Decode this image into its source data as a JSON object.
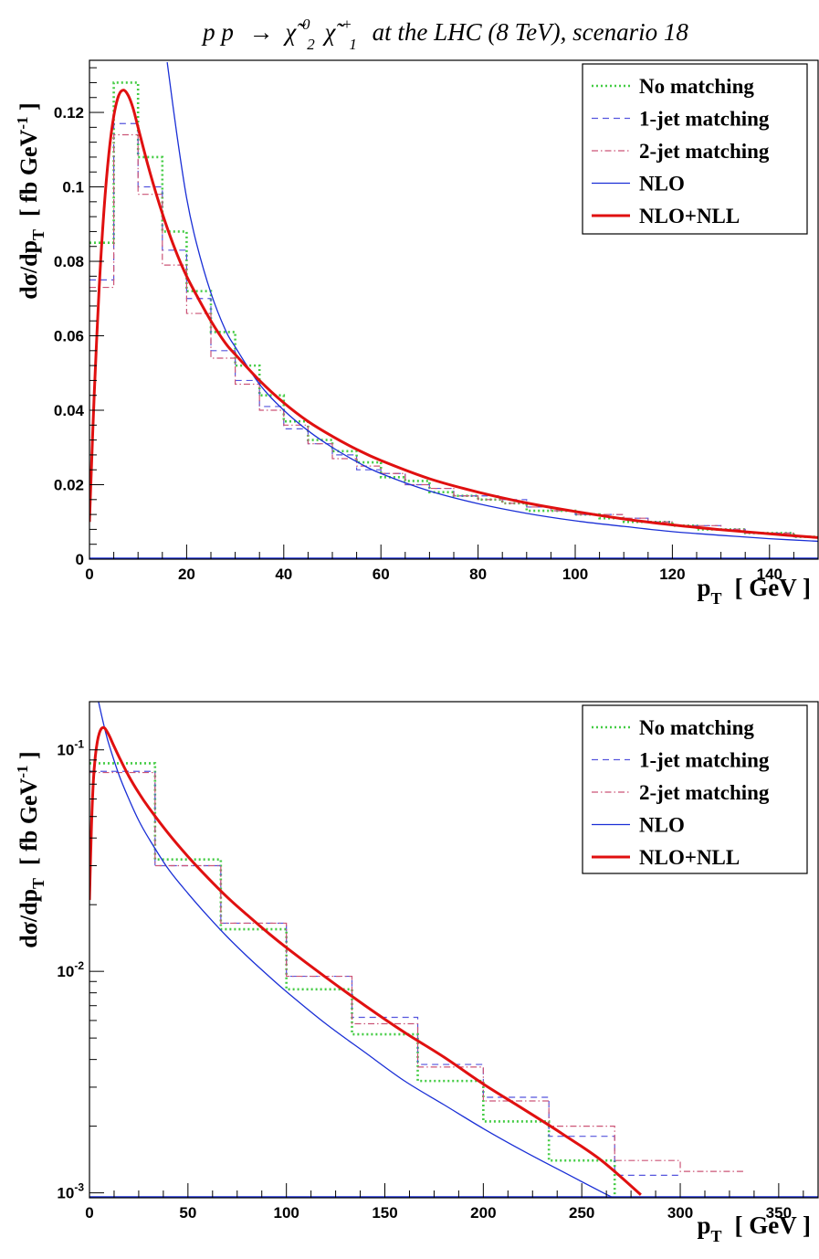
{
  "figure_title": {
    "prefix": "p p",
    "arrow": "→",
    "chi": "χ̃",
    "chi1_sup": "0",
    "chi1_sub": "2",
    "chi2_sup": "+",
    "chi2_sub": "1",
    "suffix": "at the LHC (8 TeV), scenario 18"
  },
  "colors": {
    "no_matching": "#44cc44",
    "jet1": "#5555dd",
    "jet2": "#cc5577",
    "nlo": "#1a2fd6",
    "nlo_nll": "#e01010",
    "axis": "#000000"
  },
  "chart_data": [
    {
      "type": "line",
      "scale": "linear",
      "ylabel": "dσ/dp_T [ fb GeV^-1 ]",
      "ylabel_parts": {
        "main": "dσ/dp",
        "sub": "T",
        "open": "[ fb GeV",
        "sup": "-1",
        "close": " ]"
      },
      "xlabel_parts": {
        "main": "p",
        "sub": "T",
        "rest": "[ GeV ]"
      },
      "xlim": [
        0,
        150
      ],
      "ylim": [
        0,
        0.134
      ],
      "xticks": [
        0,
        20,
        40,
        60,
        80,
        100,
        120,
        140
      ],
      "xtick_labels": [
        "0",
        "20",
        "40",
        "60",
        "80",
        "100",
        "120",
        "140"
      ],
      "yticks": [
        0,
        0.02,
        0.04,
        0.06,
        0.08,
        0.1,
        0.12
      ],
      "ytick_labels": [
        "0",
        "0.02",
        "0.04",
        "0.06",
        "0.08",
        "0.1",
        "0.12"
      ],
      "legend": {
        "position": "top-right",
        "entries": [
          "No matching",
          "1-jet matching",
          "2-jet matching",
          "NLO",
          "NLO+NLL"
        ]
      },
      "histograms": [
        {
          "name": "No matching",
          "style": "dotted",
          "edges": [
            0,
            5,
            10,
            15,
            20,
            25,
            30,
            35,
            40,
            45,
            50,
            55,
            60,
            65,
            70,
            75,
            80,
            85,
            90,
            95,
            100,
            105,
            110,
            115,
            120,
            125,
            130,
            135,
            140,
            145,
            150
          ],
          "values": [
            0.085,
            0.128,
            0.108,
            0.088,
            0.072,
            0.061,
            0.052,
            0.044,
            0.037,
            0.032,
            0.029,
            0.026,
            0.022,
            0.021,
            0.018,
            0.017,
            0.016,
            0.015,
            0.013,
            0.013,
            0.012,
            0.011,
            0.01,
            0.01,
            0.009,
            0.008,
            0.008,
            0.007,
            0.007,
            0.006
          ]
        },
        {
          "name": "1-jet matching",
          "style": "dashed",
          "edges": [
            0,
            5,
            10,
            15,
            20,
            25,
            30,
            35,
            40,
            45,
            50,
            55,
            60,
            65,
            70,
            75,
            80,
            85,
            90,
            95,
            100,
            105,
            110,
            115,
            120,
            125,
            130,
            135,
            140,
            145,
            150
          ],
          "values": [
            0.075,
            0.117,
            0.1,
            0.083,
            0.07,
            0.056,
            0.048,
            0.041,
            0.035,
            0.031,
            0.028,
            0.024,
            0.023,
            0.02,
            0.019,
            0.017,
            0.017,
            0.016,
            0.014,
            0.013,
            0.012,
            0.012,
            0.011,
            0.01,
            0.009,
            0.009,
            0.008,
            0.007,
            0.007,
            0.006
          ]
        },
        {
          "name": "2-jet matching",
          "style": "dashdot",
          "edges": [
            0,
            5,
            10,
            15,
            20,
            25,
            30,
            35,
            40,
            45,
            50,
            55,
            60,
            65,
            70,
            75,
            80,
            85,
            90,
            95,
            100,
            105,
            110,
            115,
            120,
            125,
            130,
            135,
            140,
            145,
            150
          ],
          "values": [
            0.073,
            0.114,
            0.098,
            0.079,
            0.066,
            0.054,
            0.047,
            0.04,
            0.036,
            0.031,
            0.027,
            0.025,
            0.023,
            0.02,
            0.019,
            0.017,
            0.016,
            0.015,
            0.014,
            0.013,
            0.012,
            0.012,
            0.011,
            0.01,
            0.009,
            0.009,
            0.008,
            0.007,
            0.007,
            0.006
          ]
        }
      ],
      "curves": [
        {
          "name": "NLO",
          "style": "solid-thin",
          "x": [
            16.0,
            18,
            20,
            22,
            25,
            28,
            30,
            35,
            40,
            45,
            50,
            55,
            60,
            70,
            80,
            90,
            100,
            110,
            120,
            130,
            140,
            150
          ],
          "y": [
            0.1335,
            0.114,
            0.097,
            0.085,
            0.0715,
            0.0615,
            0.057,
            0.047,
            0.04,
            0.0345,
            0.03,
            0.0262,
            0.023,
            0.0183,
            0.0149,
            0.0123,
            0.0103,
            0.0088,
            0.0074,
            0.0064,
            0.0055,
            0.0048
          ]
        },
        {
          "name": "NLO+NLL",
          "style": "solid-thick",
          "x": [
            0,
            0.5,
            1,
            2,
            3,
            4,
            5,
            6,
            7,
            8,
            9,
            10,
            12,
            14,
            16,
            18,
            20,
            22,
            25,
            28,
            30,
            35,
            40,
            45,
            50,
            55,
            60,
            70,
            80,
            90,
            100,
            110,
            120,
            130,
            140,
            150
          ],
          "y": [
            0.01,
            0.028,
            0.045,
            0.073,
            0.094,
            0.109,
            0.119,
            0.1245,
            0.126,
            0.1245,
            0.121,
            0.116,
            0.106,
            0.097,
            0.089,
            0.082,
            0.076,
            0.071,
            0.064,
            0.058,
            0.055,
            0.048,
            0.042,
            0.037,
            0.033,
            0.0295,
            0.0265,
            0.0216,
            0.018,
            0.0151,
            0.0128,
            0.0108,
            0.0092,
            0.0079,
            0.0068,
            0.0058
          ]
        }
      ]
    },
    {
      "type": "line",
      "scale": "log",
      "ylabel": "dσ/dp_T [ fb GeV^-1 ]",
      "ylabel_parts": {
        "main": "dσ/dp",
        "sub": "T",
        "open": "[ fb GeV",
        "sup": "-1",
        "close": " ]"
      },
      "xlabel_parts": {
        "main": "p",
        "sub": "T",
        "rest": "[ GeV ]"
      },
      "xlim": [
        0,
        370
      ],
      "ylim": [
        0.00095,
        0.165
      ],
      "xticks": [
        0,
        50,
        100,
        150,
        200,
        250,
        300,
        350
      ],
      "xtick_labels": [
        "0",
        "50",
        "100",
        "150",
        "200",
        "250",
        "300",
        "350"
      ],
      "yticks": [
        0.001,
        0.01,
        0.1
      ],
      "ytick_labels": [
        {
          "base": "10",
          "exp": "-3"
        },
        {
          "base": "10",
          "exp": "-2"
        },
        {
          "base": "10",
          "exp": "-1"
        }
      ],
      "legend": {
        "position": "top-right",
        "entries": [
          "No matching",
          "1-jet matching",
          "2-jet matching",
          "NLO",
          "NLO+NLL"
        ]
      },
      "histograms": [
        {
          "name": "No matching",
          "style": "dotted",
          "edges": [
            0,
            33.3,
            66.7,
            100,
            133.3,
            166.7,
            200,
            233.3,
            266.7,
            300
          ],
          "values": [
            0.087,
            0.032,
            0.0155,
            0.0083,
            0.0052,
            0.0032,
            0.0021,
            0.0014,
            0.00095
          ]
        },
        {
          "name": "1-jet matching",
          "style": "dashed",
          "edges": [
            0,
            33.3,
            66.7,
            100,
            133.3,
            166.7,
            200,
            233.3,
            266.7,
            300
          ],
          "values": [
            0.08,
            0.03,
            0.0165,
            0.0095,
            0.0062,
            0.0038,
            0.0027,
            0.0018,
            0.0012
          ]
        },
        {
          "name": "2-jet matching",
          "style": "dashdot",
          "edges": [
            0,
            33.3,
            66.7,
            100,
            133.3,
            166.7,
            200,
            233.3,
            266.7,
            300,
            333.3
          ],
          "values": [
            0.079,
            0.03,
            0.0165,
            0.0095,
            0.0058,
            0.0037,
            0.0026,
            0.002,
            0.0014,
            0.00125
          ]
        }
      ],
      "curves": [
        {
          "name": "NLO",
          "style": "solid-thin",
          "x": [
            4.6,
            6,
            8,
            10,
            15,
            20,
            25,
            30,
            40,
            50,
            60,
            70,
            80,
            90,
            100,
            120,
            140,
            160,
            180,
            200,
            220,
            240,
            260,
            265
          ],
          "y": [
            0.165,
            0.145,
            0.122,
            0.105,
            0.077,
            0.06,
            0.048,
            0.04,
            0.029,
            0.0225,
            0.0178,
            0.0143,
            0.0117,
            0.0097,
            0.0081,
            0.0058,
            0.0043,
            0.0032,
            0.0025,
            0.00195,
            0.00155,
            0.00125,
            0.00101,
            0.00096
          ]
        },
        {
          "name": "NLO+NLL",
          "style": "solid-thick",
          "x": [
            0,
            1,
            2,
            3,
            4,
            5,
            6,
            7,
            8,
            10,
            12,
            15,
            20,
            25,
            30,
            40,
            50,
            60,
            70,
            80,
            90,
            100,
            120,
            140,
            160,
            180,
            200,
            220,
            240,
            260,
            280
          ],
          "y": [
            0.021,
            0.045,
            0.073,
            0.094,
            0.109,
            0.119,
            0.1245,
            0.126,
            0.1245,
            0.116,
            0.106,
            0.093,
            0.076,
            0.064,
            0.055,
            0.042,
            0.033,
            0.0265,
            0.0216,
            0.018,
            0.0151,
            0.0128,
            0.0094,
            0.007,
            0.0053,
            0.0041,
            0.0031,
            0.0024,
            0.00185,
            0.0014,
            0.00098
          ]
        }
      ]
    }
  ]
}
